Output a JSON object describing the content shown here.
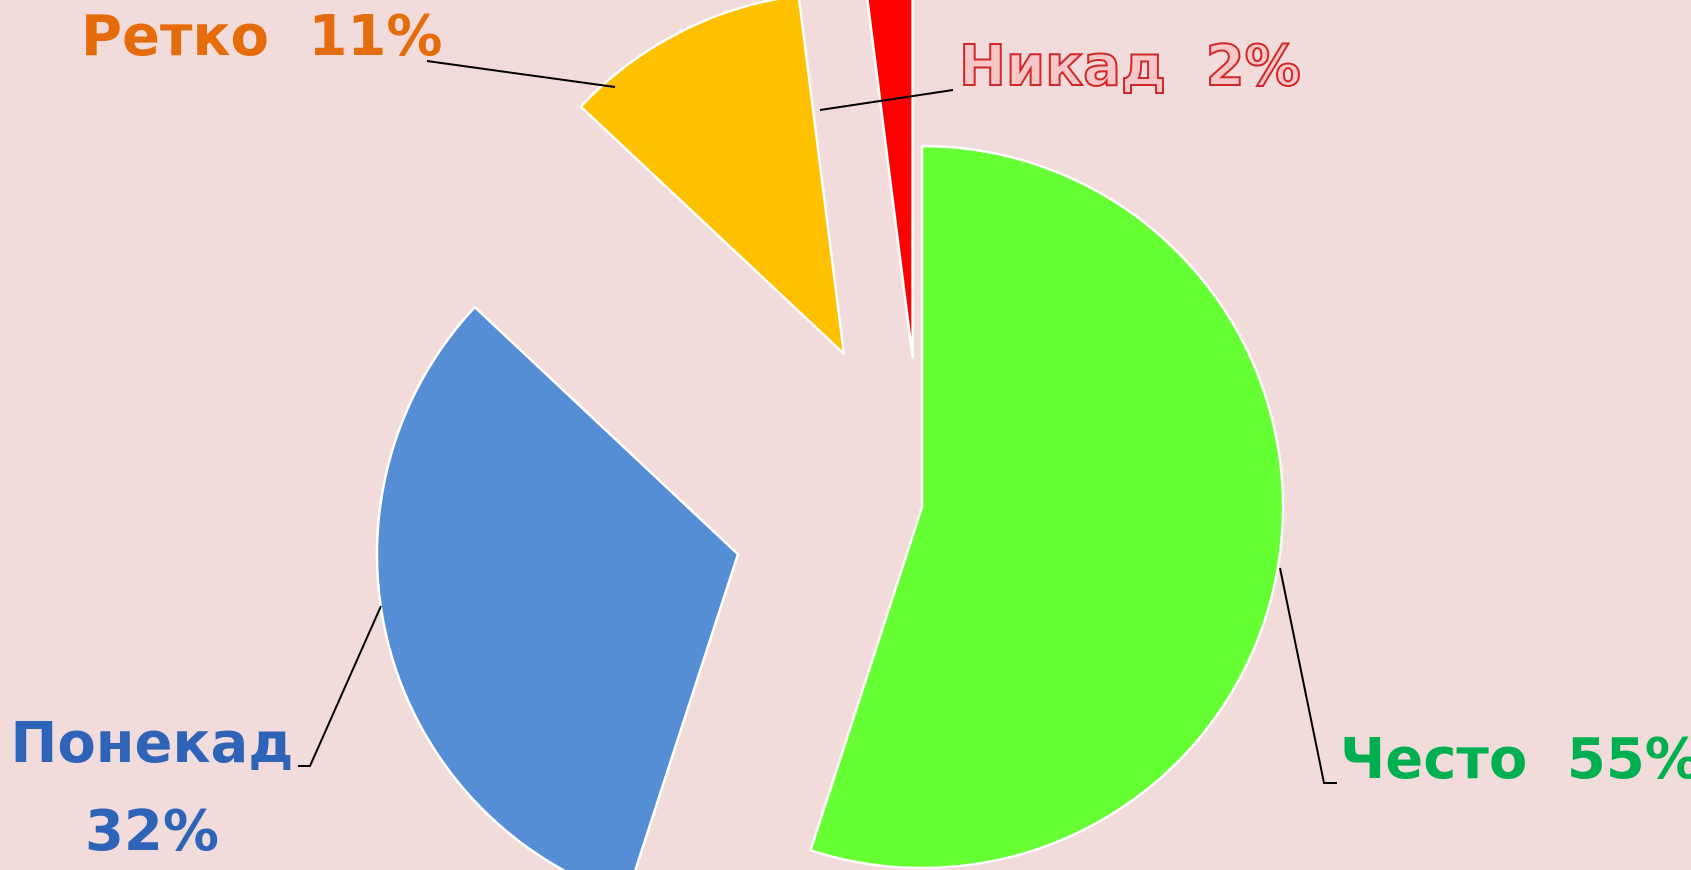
{
  "chart_data": {
    "type": "pie",
    "categories": [
      "Често",
      "Понекад",
      "Ретко",
      "Никад"
    ],
    "values": [
      55,
      32,
      11,
      2
    ],
    "value_labels": [
      "55%",
      "32%",
      "11%",
      "2%"
    ],
    "colors": [
      "#66ff33",
      "#558ed5",
      "#ffc000",
      "#ff0000"
    ]
  }
}
